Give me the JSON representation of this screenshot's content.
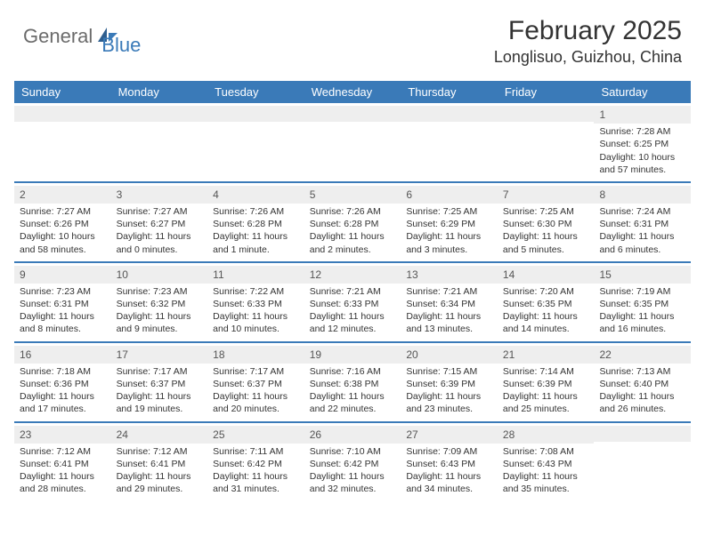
{
  "logo": {
    "part1": "General",
    "part2": "Blue"
  },
  "title": "February 2025",
  "location": "Longlisuo, Guizhou, China",
  "colors": {
    "header_bg": "#3a7ab8",
    "header_text": "#ffffff",
    "daynum_bg": "#eeeeee",
    "text": "#333333",
    "logo_gray": "#6b6b6b",
    "logo_blue": "#3a7ab8"
  },
  "daysOfWeek": [
    "Sunday",
    "Monday",
    "Tuesday",
    "Wednesday",
    "Thursday",
    "Friday",
    "Saturday"
  ],
  "weeks": [
    [
      {
        "num": "",
        "sunrise": "",
        "sunset": "",
        "daylight": ""
      },
      {
        "num": "",
        "sunrise": "",
        "sunset": "",
        "daylight": ""
      },
      {
        "num": "",
        "sunrise": "",
        "sunset": "",
        "daylight": ""
      },
      {
        "num": "",
        "sunrise": "",
        "sunset": "",
        "daylight": ""
      },
      {
        "num": "",
        "sunrise": "",
        "sunset": "",
        "daylight": ""
      },
      {
        "num": "",
        "sunrise": "",
        "sunset": "",
        "daylight": ""
      },
      {
        "num": "1",
        "sunrise": "Sunrise: 7:28 AM",
        "sunset": "Sunset: 6:25 PM",
        "daylight": "Daylight: 10 hours and 57 minutes."
      }
    ],
    [
      {
        "num": "2",
        "sunrise": "Sunrise: 7:27 AM",
        "sunset": "Sunset: 6:26 PM",
        "daylight": "Daylight: 10 hours and 58 minutes."
      },
      {
        "num": "3",
        "sunrise": "Sunrise: 7:27 AM",
        "sunset": "Sunset: 6:27 PM",
        "daylight": "Daylight: 11 hours and 0 minutes."
      },
      {
        "num": "4",
        "sunrise": "Sunrise: 7:26 AM",
        "sunset": "Sunset: 6:28 PM",
        "daylight": "Daylight: 11 hours and 1 minute."
      },
      {
        "num": "5",
        "sunrise": "Sunrise: 7:26 AM",
        "sunset": "Sunset: 6:28 PM",
        "daylight": "Daylight: 11 hours and 2 minutes."
      },
      {
        "num": "6",
        "sunrise": "Sunrise: 7:25 AM",
        "sunset": "Sunset: 6:29 PM",
        "daylight": "Daylight: 11 hours and 3 minutes."
      },
      {
        "num": "7",
        "sunrise": "Sunrise: 7:25 AM",
        "sunset": "Sunset: 6:30 PM",
        "daylight": "Daylight: 11 hours and 5 minutes."
      },
      {
        "num": "8",
        "sunrise": "Sunrise: 7:24 AM",
        "sunset": "Sunset: 6:31 PM",
        "daylight": "Daylight: 11 hours and 6 minutes."
      }
    ],
    [
      {
        "num": "9",
        "sunrise": "Sunrise: 7:23 AM",
        "sunset": "Sunset: 6:31 PM",
        "daylight": "Daylight: 11 hours and 8 minutes."
      },
      {
        "num": "10",
        "sunrise": "Sunrise: 7:23 AM",
        "sunset": "Sunset: 6:32 PM",
        "daylight": "Daylight: 11 hours and 9 minutes."
      },
      {
        "num": "11",
        "sunrise": "Sunrise: 7:22 AM",
        "sunset": "Sunset: 6:33 PM",
        "daylight": "Daylight: 11 hours and 10 minutes."
      },
      {
        "num": "12",
        "sunrise": "Sunrise: 7:21 AM",
        "sunset": "Sunset: 6:33 PM",
        "daylight": "Daylight: 11 hours and 12 minutes."
      },
      {
        "num": "13",
        "sunrise": "Sunrise: 7:21 AM",
        "sunset": "Sunset: 6:34 PM",
        "daylight": "Daylight: 11 hours and 13 minutes."
      },
      {
        "num": "14",
        "sunrise": "Sunrise: 7:20 AM",
        "sunset": "Sunset: 6:35 PM",
        "daylight": "Daylight: 11 hours and 14 minutes."
      },
      {
        "num": "15",
        "sunrise": "Sunrise: 7:19 AM",
        "sunset": "Sunset: 6:35 PM",
        "daylight": "Daylight: 11 hours and 16 minutes."
      }
    ],
    [
      {
        "num": "16",
        "sunrise": "Sunrise: 7:18 AM",
        "sunset": "Sunset: 6:36 PM",
        "daylight": "Daylight: 11 hours and 17 minutes."
      },
      {
        "num": "17",
        "sunrise": "Sunrise: 7:17 AM",
        "sunset": "Sunset: 6:37 PM",
        "daylight": "Daylight: 11 hours and 19 minutes."
      },
      {
        "num": "18",
        "sunrise": "Sunrise: 7:17 AM",
        "sunset": "Sunset: 6:37 PM",
        "daylight": "Daylight: 11 hours and 20 minutes."
      },
      {
        "num": "19",
        "sunrise": "Sunrise: 7:16 AM",
        "sunset": "Sunset: 6:38 PM",
        "daylight": "Daylight: 11 hours and 22 minutes."
      },
      {
        "num": "20",
        "sunrise": "Sunrise: 7:15 AM",
        "sunset": "Sunset: 6:39 PM",
        "daylight": "Daylight: 11 hours and 23 minutes."
      },
      {
        "num": "21",
        "sunrise": "Sunrise: 7:14 AM",
        "sunset": "Sunset: 6:39 PM",
        "daylight": "Daylight: 11 hours and 25 minutes."
      },
      {
        "num": "22",
        "sunrise": "Sunrise: 7:13 AM",
        "sunset": "Sunset: 6:40 PM",
        "daylight": "Daylight: 11 hours and 26 minutes."
      }
    ],
    [
      {
        "num": "23",
        "sunrise": "Sunrise: 7:12 AM",
        "sunset": "Sunset: 6:41 PM",
        "daylight": "Daylight: 11 hours and 28 minutes."
      },
      {
        "num": "24",
        "sunrise": "Sunrise: 7:12 AM",
        "sunset": "Sunset: 6:41 PM",
        "daylight": "Daylight: 11 hours and 29 minutes."
      },
      {
        "num": "25",
        "sunrise": "Sunrise: 7:11 AM",
        "sunset": "Sunset: 6:42 PM",
        "daylight": "Daylight: 11 hours and 31 minutes."
      },
      {
        "num": "26",
        "sunrise": "Sunrise: 7:10 AM",
        "sunset": "Sunset: 6:42 PM",
        "daylight": "Daylight: 11 hours and 32 minutes."
      },
      {
        "num": "27",
        "sunrise": "Sunrise: 7:09 AM",
        "sunset": "Sunset: 6:43 PM",
        "daylight": "Daylight: 11 hours and 34 minutes."
      },
      {
        "num": "28",
        "sunrise": "Sunrise: 7:08 AM",
        "sunset": "Sunset: 6:43 PM",
        "daylight": "Daylight: 11 hours and 35 minutes."
      },
      {
        "num": "",
        "sunrise": "",
        "sunset": "",
        "daylight": ""
      }
    ]
  ]
}
